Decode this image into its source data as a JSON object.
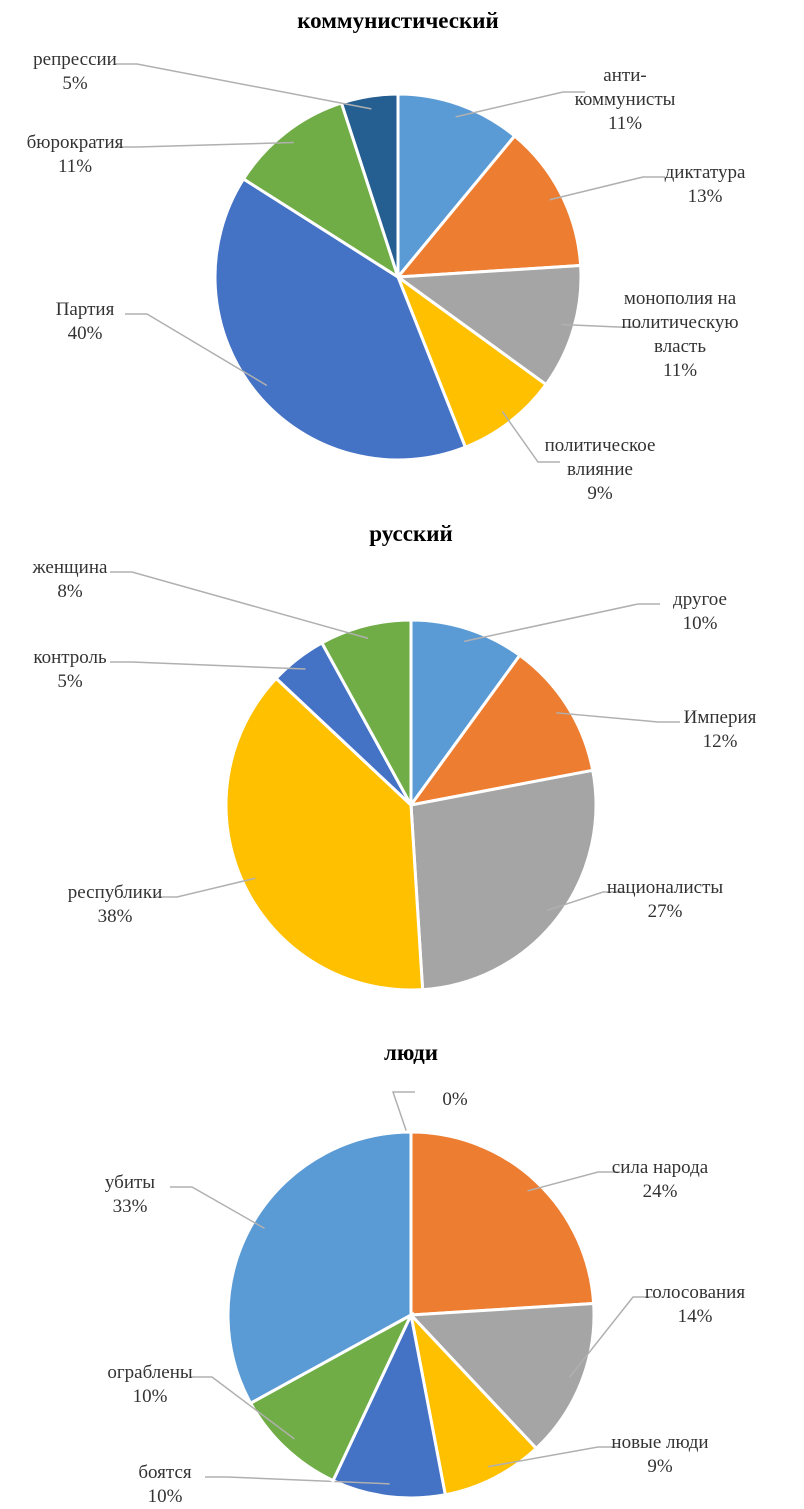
{
  "chart_data": [
    {
      "type": "pie",
      "title": "коммунистический",
      "categories": [
        "анти-коммунисты",
        "диктатура",
        "монополия на политическую власть",
        "политическое влияние",
        "Партия",
        "бюрократия",
        "репрессии"
      ],
      "values": [
        11,
        13,
        11,
        9,
        40,
        11,
        5
      ],
      "value_labels": [
        "11%",
        "13%",
        "11%",
        "9%",
        "40%",
        "11%",
        "5%"
      ],
      "colors": [
        "#5b9bd5",
        "#ed7d31",
        "#a5a5a5",
        "#ffc000",
        "#4472c4",
        "#70ad47",
        "#255e91"
      ]
    },
    {
      "type": "pie",
      "title": "русский",
      "categories": [
        "другое",
        "Империя",
        "националисты",
        "республики",
        "контроль",
        "женщина"
      ],
      "values": [
        10,
        12,
        27,
        38,
        5,
        8
      ],
      "value_labels": [
        "10%",
        "12%",
        "27%",
        "38%",
        "5%",
        "8%"
      ],
      "colors": [
        "#5b9bd5",
        "#ed7d31",
        "#a5a5a5",
        "#ffc000",
        "#4472c4",
        "#70ad47"
      ]
    },
    {
      "type": "pie",
      "title": "люди",
      "categories": [
        null,
        "сила народа",
        "голосования",
        "новые люди",
        "боятся",
        "ограблены",
        "убиты"
      ],
      "values": [
        0,
        24,
        14,
        9,
        10,
        10,
        33
      ],
      "value_labels": [
        "0%",
        "24%",
        "14%",
        "9%",
        "10%",
        "10%",
        "33%"
      ],
      "colors": [
        "#5b9bd5",
        "#ed7d31",
        "#a5a5a5",
        "#ffc000",
        "#4472c4",
        "#70ad47",
        "#5b9bd5"
      ]
    }
  ]
}
